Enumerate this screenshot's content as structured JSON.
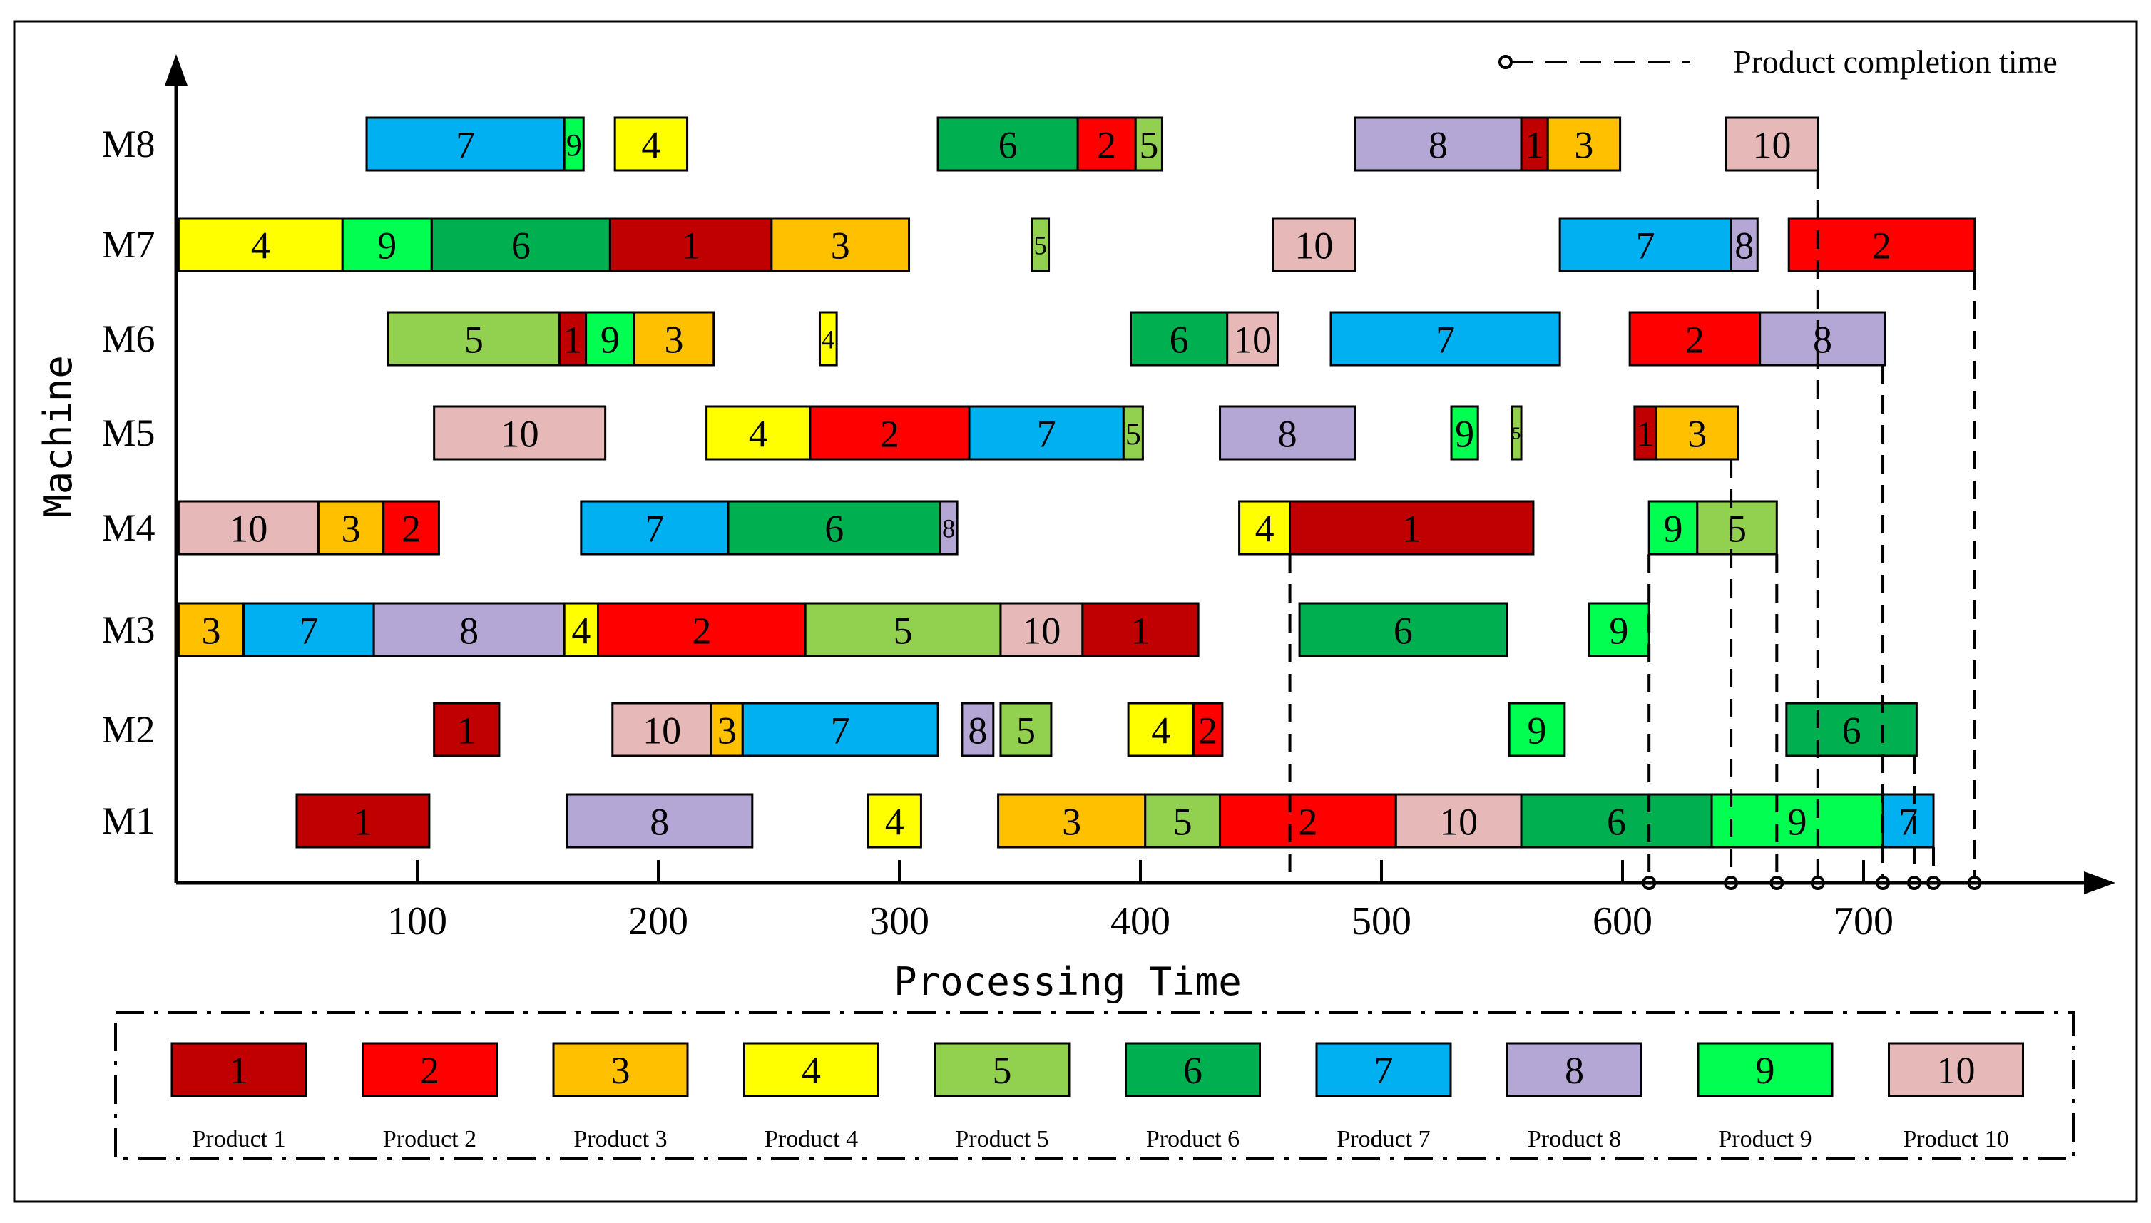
{
  "chart_data": {
    "type": "gantt",
    "xlabel": "Processing Time",
    "ylabel": "Machine",
    "x_ticks": [
      100,
      200,
      300,
      400,
      500,
      600,
      700
    ],
    "machines": [
      "M1",
      "M2",
      "M3",
      "M4",
      "M5",
      "M6",
      "M7",
      "M8"
    ],
    "legend_title": "Product completion time",
    "products": [
      {
        "id": "1",
        "name": "Product 1",
        "color": "#c00000"
      },
      {
        "id": "2",
        "name": "Product 2",
        "color": "#ff0000"
      },
      {
        "id": "3",
        "name": "Product 3",
        "color": "#ffc000"
      },
      {
        "id": "4",
        "name": "Product 4",
        "color": "#ffff00"
      },
      {
        "id": "5",
        "name": "Product 5",
        "color": "#92d050"
      },
      {
        "id": "6",
        "name": "Product 6",
        "color": "#00b050"
      },
      {
        "id": "7",
        "name": "Product 7",
        "color": "#00b0f0"
      },
      {
        "id": "8",
        "name": "Product 8",
        "color": "#b4a7d6"
      },
      {
        "id": "9",
        "name": "Product 9",
        "color": "#00ff50"
      },
      {
        "id": "10",
        "name": "Product 10",
        "color": "#e6b8b7"
      }
    ],
    "tasks": [
      {
        "machine": "M8",
        "product": 7,
        "start": 79,
        "end": 161
      },
      {
        "machine": "M8",
        "product": 9,
        "start": 161,
        "end": 169
      },
      {
        "machine": "M8",
        "product": 4,
        "start": 182,
        "end": 212
      },
      {
        "machine": "M8",
        "product": 6,
        "start": 316,
        "end": 374
      },
      {
        "machine": "M8",
        "product": 2,
        "start": 374,
        "end": 398
      },
      {
        "machine": "M8",
        "product": 5,
        "start": 398,
        "end": 409
      },
      {
        "machine": "M8",
        "product": 8,
        "start": 489,
        "end": 558
      },
      {
        "machine": "M8",
        "product": 1,
        "start": 558,
        "end": 569
      },
      {
        "machine": "M8",
        "product": 3,
        "start": 569,
        "end": 599
      },
      {
        "machine": "M8",
        "product": 10,
        "start": 643,
        "end": 681
      },
      {
        "machine": "M7",
        "product": 4,
        "start": 1,
        "end": 69
      },
      {
        "machine": "M7",
        "product": 9,
        "start": 69,
        "end": 106
      },
      {
        "machine": "M7",
        "product": 6,
        "start": 106,
        "end": 180
      },
      {
        "machine": "M7",
        "product": 1,
        "start": 180,
        "end": 247
      },
      {
        "machine": "M7",
        "product": 3,
        "start": 247,
        "end": 304
      },
      {
        "machine": "M7",
        "product": 5,
        "start": 355,
        "end": 362
      },
      {
        "machine": "M7",
        "product": 10,
        "start": 455,
        "end": 489
      },
      {
        "machine": "M7",
        "product": 7,
        "start": 574,
        "end": 645
      },
      {
        "machine": "M7",
        "product": 8,
        "start": 645,
        "end": 656
      },
      {
        "machine": "M7",
        "product": 2,
        "start": 669,
        "end": 746
      },
      {
        "machine": "M6",
        "product": 5,
        "start": 88,
        "end": 159
      },
      {
        "machine": "M6",
        "product": 1,
        "start": 159,
        "end": 170
      },
      {
        "machine": "M6",
        "product": 9,
        "start": 170,
        "end": 190
      },
      {
        "machine": "M6",
        "product": 3,
        "start": 190,
        "end": 223
      },
      {
        "machine": "M6",
        "product": 4,
        "start": 267,
        "end": 274
      },
      {
        "machine": "M6",
        "product": 6,
        "start": 396,
        "end": 436
      },
      {
        "machine": "M6",
        "product": 10,
        "start": 436,
        "end": 457
      },
      {
        "machine": "M6",
        "product": 7,
        "start": 479,
        "end": 574
      },
      {
        "machine": "M6",
        "product": 2,
        "start": 603,
        "end": 657
      },
      {
        "machine": "M6",
        "product": 8,
        "start": 657,
        "end": 709
      },
      {
        "machine": "M5",
        "product": 10,
        "start": 107,
        "end": 178
      },
      {
        "machine": "M5",
        "product": 4,
        "start": 220,
        "end": 263
      },
      {
        "machine": "M5",
        "product": 2,
        "start": 263,
        "end": 329
      },
      {
        "machine": "M5",
        "product": 7,
        "start": 329,
        "end": 393
      },
      {
        "machine": "M5",
        "product": 5,
        "start": 393,
        "end": 401
      },
      {
        "machine": "M5",
        "product": 8,
        "start": 433,
        "end": 489
      },
      {
        "machine": "M5",
        "product": 9,
        "start": 529,
        "end": 540
      },
      {
        "machine": "M5",
        "product": 5,
        "start": 554,
        "end": 558
      },
      {
        "machine": "M5",
        "product": 1,
        "start": 605,
        "end": 614
      },
      {
        "machine": "M5",
        "product": 3,
        "start": 614,
        "end": 648
      },
      {
        "machine": "M4",
        "product": 10,
        "start": 1,
        "end": 59
      },
      {
        "machine": "M4",
        "product": 3,
        "start": 59,
        "end": 86
      },
      {
        "machine": "M4",
        "product": 2,
        "start": 86,
        "end": 109
      },
      {
        "machine": "M4",
        "product": 7,
        "start": 168,
        "end": 229
      },
      {
        "machine": "M4",
        "product": 6,
        "start": 229,
        "end": 317
      },
      {
        "machine": "M4",
        "product": 8,
        "start": 317,
        "end": 324
      },
      {
        "machine": "M4",
        "product": 4,
        "start": 441,
        "end": 462
      },
      {
        "machine": "M4",
        "product": 1,
        "start": 462,
        "end": 563
      },
      {
        "machine": "M4",
        "product": 9,
        "start": 611,
        "end": 631
      },
      {
        "machine": "M4",
        "product": 5,
        "start": 631,
        "end": 664
      },
      {
        "machine": "M3",
        "product": 3,
        "start": 1,
        "end": 28
      },
      {
        "machine": "M3",
        "product": 7,
        "start": 28,
        "end": 82
      },
      {
        "machine": "M3",
        "product": 8,
        "start": 82,
        "end": 161
      },
      {
        "machine": "M3",
        "product": 4,
        "start": 161,
        "end": 175
      },
      {
        "machine": "M3",
        "product": 2,
        "start": 175,
        "end": 261
      },
      {
        "machine": "M3",
        "product": 5,
        "start": 261,
        "end": 342
      },
      {
        "machine": "M3",
        "product": 10,
        "start": 342,
        "end": 376
      },
      {
        "machine": "M3",
        "product": 1,
        "start": 376,
        "end": 424
      },
      {
        "machine": "M3",
        "product": 6,
        "start": 466,
        "end": 552
      },
      {
        "machine": "M3",
        "product": 9,
        "start": 586,
        "end": 611
      },
      {
        "machine": "M2",
        "product": 1,
        "start": 107,
        "end": 134
      },
      {
        "machine": "M2",
        "product": 10,
        "start": 181,
        "end": 222
      },
      {
        "machine": "M2",
        "product": 3,
        "start": 222,
        "end": 235
      },
      {
        "machine": "M2",
        "product": 7,
        "start": 235,
        "end": 316
      },
      {
        "machine": "M2",
        "product": 8,
        "start": 326,
        "end": 339
      },
      {
        "machine": "M2",
        "product": 5,
        "start": 342,
        "end": 363
      },
      {
        "machine": "M2",
        "product": 4,
        "start": 395,
        "end": 422
      },
      {
        "machine": "M2",
        "product": 2,
        "start": 422,
        "end": 434
      },
      {
        "machine": "M2",
        "product": 9,
        "start": 553,
        "end": 576
      },
      {
        "machine": "M2",
        "product": 6,
        "start": 668,
        "end": 722
      },
      {
        "machine": "M1",
        "product": 1,
        "start": 50,
        "end": 105
      },
      {
        "machine": "M1",
        "product": 8,
        "start": 162,
        "end": 239
      },
      {
        "machine": "M1",
        "product": 4,
        "start": 287,
        "end": 309
      },
      {
        "machine": "M1",
        "product": 3,
        "start": 341,
        "end": 402
      },
      {
        "machine": "M1",
        "product": 5,
        "start": 402,
        "end": 433
      },
      {
        "machine": "M1",
        "product": 2,
        "start": 433,
        "end": 506
      },
      {
        "machine": "M1",
        "product": 10,
        "start": 506,
        "end": 558
      },
      {
        "machine": "M1",
        "product": 6,
        "start": 558,
        "end": 637
      },
      {
        "machine": "M1",
        "product": 9,
        "start": 637,
        "end": 708
      },
      {
        "machine": "M1",
        "product": 7,
        "start": 708,
        "end": 729
      }
    ],
    "completion_times": [
      {
        "time": 462,
        "from_machine": "M4",
        "marker": false
      },
      {
        "time": 611,
        "from_machine": "M4",
        "marker": true
      },
      {
        "time": 645,
        "from_machine": "M5",
        "marker": true
      },
      {
        "time": 664,
        "from_machine": "M4",
        "marker": true
      },
      {
        "time": 681,
        "from_machine": "M8",
        "marker": true
      },
      {
        "time": 708,
        "from_machine": "M6",
        "marker": true
      },
      {
        "time": 721,
        "from_machine": "M2",
        "marker": true
      },
      {
        "time": 729,
        "from_machine": "M1",
        "marker": true
      },
      {
        "time": 746,
        "from_machine": "M7",
        "marker": true
      }
    ]
  }
}
